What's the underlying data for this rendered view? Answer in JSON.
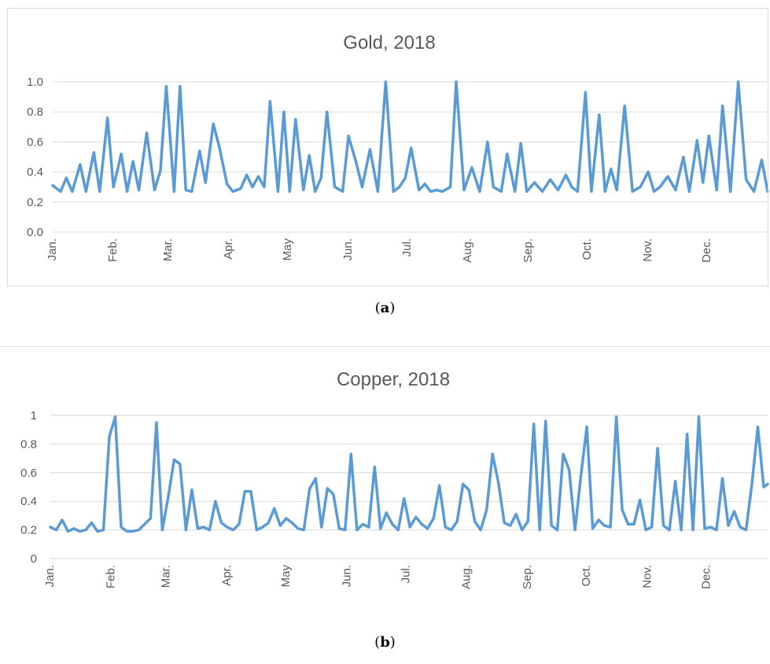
{
  "captions": {
    "a_open": "(",
    "a_letter": "a",
    "a_close": ")",
    "b_open": "(",
    "b_letter": "b",
    "b_close": ")"
  },
  "colors": {
    "line": "#5b9bd5",
    "grid": "#d9d9d9",
    "text": "#595959"
  },
  "chart_data": [
    {
      "type": "line",
      "title": "Gold, 2018",
      "xlabel": "",
      "ylabel": "",
      "ylim": [
        0,
        1.0
      ],
      "yticks": [
        "0.0",
        "0.2",
        "0.4",
        "0.6",
        "0.8",
        "1.0"
      ],
      "months": [
        "Jan.",
        "Feb.",
        "Mar.",
        "Apr.",
        "May",
        "Jun.",
        "Jul.",
        "Aug.",
        "Sep.",
        "Oct.",
        "Nov.",
        "Dec."
      ],
      "grid": true,
      "legend": "none",
      "x": [
        0,
        4,
        7,
        10,
        14,
        17,
        21,
        24,
        28,
        31,
        35,
        38,
        41,
        44,
        48,
        52,
        55,
        58,
        62,
        65,
        68,
        71,
        75,
        78,
        82,
        85,
        89,
        92,
        96,
        99,
        102,
        105,
        108,
        111,
        115,
        118,
        121,
        124,
        128,
        131,
        134,
        137,
        140,
        144,
        148,
        151,
        155,
        158,
        162,
        166,
        170,
        174,
        177,
        180,
        183,
        187,
        190,
        193,
        196,
        199,
        203,
        206,
        210,
        214,
        218,
        222,
        225,
        229,
        232,
        236,
        239,
        242,
        246,
        250,
        254,
        258,
        262,
        265,
        268,
        272,
        275,
        279,
        282,
        285,
        288,
        292,
        296,
        300,
        304,
        307,
        310,
        314,
        318,
        322,
        325,
        329,
        332,
        335,
        339,
        342,
        346,
        350,
        354,
        358,
        362,
        365
      ],
      "values": [
        0.31,
        0.27,
        0.36,
        0.27,
        0.45,
        0.27,
        0.53,
        0.27,
        0.76,
        0.3,
        0.52,
        0.27,
        0.47,
        0.28,
        0.66,
        0.28,
        0.41,
        0.97,
        0.27,
        0.97,
        0.28,
        0.27,
        0.54,
        0.33,
        0.72,
        0.57,
        0.32,
        0.27,
        0.29,
        0.38,
        0.3,
        0.37,
        0.3,
        0.87,
        0.27,
        0.8,
        0.27,
        0.75,
        0.28,
        0.51,
        0.27,
        0.36,
        0.8,
        0.3,
        0.27,
        0.64,
        0.46,
        0.3,
        0.55,
        0.27,
        1.0,
        0.27,
        0.3,
        0.36,
        0.56,
        0.28,
        0.32,
        0.27,
        0.28,
        0.27,
        0.3,
        1.0,
        0.28,
        0.43,
        0.27,
        0.6,
        0.3,
        0.27,
        0.52,
        0.27,
        0.59,
        0.27,
        0.33,
        0.27,
        0.35,
        0.28,
        0.38,
        0.3,
        0.27,
        0.93,
        0.27,
        0.78,
        0.27,
        0.42,
        0.28,
        0.84,
        0.27,
        0.3,
        0.4,
        0.27,
        0.3,
        0.37,
        0.28,
        0.5,
        0.27,
        0.61,
        0.33,
        0.64,
        0.28,
        0.84,
        0.27,
        1.0,
        0.35,
        0.27,
        0.48,
        0.27
      ]
    },
    {
      "type": "line",
      "title": "Copper, 2018",
      "xlabel": "",
      "ylabel": "",
      "ylim": [
        0,
        1
      ],
      "yticks": [
        "0",
        "0.2",
        "0.4",
        "0.6",
        "0.8",
        "1"
      ],
      "months": [
        "Jan.",
        "Feb.",
        "Mar.",
        "Apr.",
        "May",
        "Jun.",
        "Jul.",
        "Aug.",
        "Sep.",
        "Oct.",
        "Nov.",
        "Dec."
      ],
      "grid": true,
      "legend": "none",
      "x": [
        0,
        3,
        6,
        9,
        12,
        15,
        18,
        21,
        24,
        27,
        30,
        33,
        36,
        39,
        42,
        45,
        48,
        51,
        54,
        57,
        60,
        63,
        66,
        69,
        72,
        75,
        78,
        81,
        84,
        87,
        90,
        93,
        96,
        99,
        102,
        105,
        108,
        111,
        114,
        117,
        120,
        123,
        126,
        129,
        132,
        135,
        138,
        141,
        144,
        147,
        150,
        153,
        156,
        159,
        162,
        165,
        168,
        171,
        174,
        177,
        180,
        183,
        186,
        189,
        192,
        195,
        198,
        201,
        204,
        207,
        210,
        213,
        216,
        219,
        222,
        225,
        228,
        231,
        234,
        237,
        240,
        243,
        246,
        249,
        252,
        255,
        258,
        261,
        264,
        267,
        270,
        273,
        276,
        279,
        282,
        285,
        288,
        291,
        294,
        297,
        300,
        303,
        306,
        309,
        312,
        315,
        318,
        321,
        324,
        327,
        330,
        333,
        336,
        339,
        342,
        345,
        348,
        351,
        354,
        357,
        360,
        363,
        365
      ],
      "values": [
        0.22,
        0.2,
        0.27,
        0.19,
        0.21,
        0.19,
        0.2,
        0.25,
        0.19,
        0.2,
        0.85,
        0.99,
        0.22,
        0.19,
        0.19,
        0.2,
        0.24,
        0.28,
        0.95,
        0.2,
        0.43,
        0.69,
        0.66,
        0.2,
        0.48,
        0.21,
        0.22,
        0.2,
        0.4,
        0.25,
        0.22,
        0.2,
        0.24,
        0.47,
        0.47,
        0.2,
        0.22,
        0.25,
        0.35,
        0.23,
        0.28,
        0.25,
        0.21,
        0.2,
        0.49,
        0.56,
        0.22,
        0.49,
        0.45,
        0.21,
        0.2,
        0.73,
        0.2,
        0.24,
        0.22,
        0.64,
        0.21,
        0.32,
        0.24,
        0.2,
        0.42,
        0.22,
        0.29,
        0.24,
        0.21,
        0.28,
        0.51,
        0.22,
        0.2,
        0.26,
        0.52,
        0.48,
        0.26,
        0.2,
        0.34,
        0.73,
        0.53,
        0.25,
        0.23,
        0.31,
        0.2,
        0.26,
        0.94,
        0.2,
        0.96,
        0.23,
        0.2,
        0.73,
        0.62,
        0.2,
        0.58,
        0.92,
        0.21,
        0.27,
        0.23,
        0.22,
        0.99,
        0.34,
        0.24,
        0.24,
        0.41,
        0.2,
        0.22,
        0.77,
        0.23,
        0.2,
        0.54,
        0.2,
        0.87,
        0.2,
        0.99,
        0.21,
        0.22,
        0.2,
        0.56,
        0.23,
        0.33,
        0.22,
        0.2,
        0.52,
        0.92,
        0.5,
        0.52
      ]
    }
  ]
}
